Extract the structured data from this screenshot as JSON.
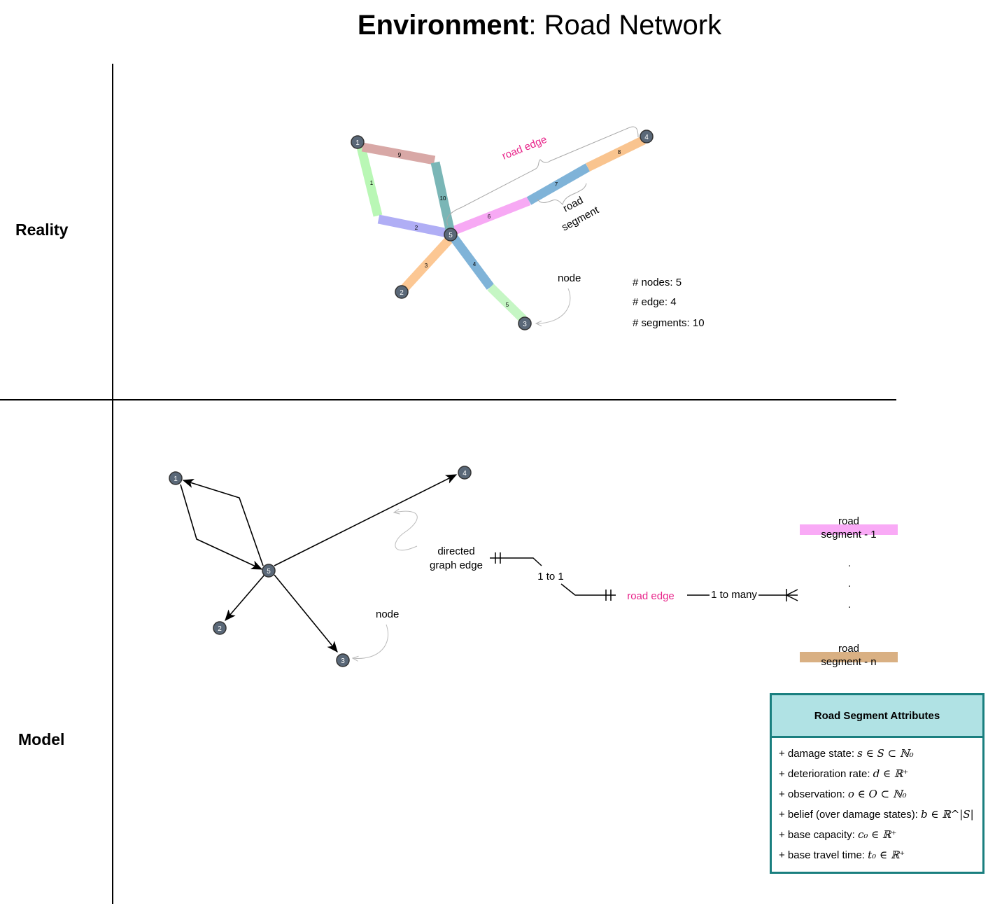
{
  "title": {
    "bold": "Environment",
    "rest": ": Road Network"
  },
  "rows": {
    "reality": "Reality",
    "model": "Model"
  },
  "colors": {
    "node_fill": "#5a6878",
    "road_edge_label": "#e8258a",
    "segment_1": "#f9aaf6",
    "segment_n": "#d9b083",
    "attr_border": "#1a7f7f",
    "attr_header": "#b0e2e4"
  },
  "reality": {
    "nodes": [
      "1",
      "2",
      "3",
      "4",
      "5"
    ],
    "segments": [
      {
        "label": "1",
        "color": "#b9f7b5"
      },
      {
        "label": "2",
        "color": "#b0aef5"
      },
      {
        "label": "3",
        "color": "#fcc793"
      },
      {
        "label": "4",
        "color": "#7fb3d8"
      },
      {
        "label": "5",
        "color": "#c5f6c4"
      },
      {
        "label": "6",
        "color": "#f7a9f4"
      },
      {
        "label": "7",
        "color": "#7fb3d8"
      },
      {
        "label": "8",
        "color": "#f9c48f"
      },
      {
        "label": "9",
        "color": "#d8a8a6"
      },
      {
        "label": "10",
        "color": "#7ab6b6"
      }
    ],
    "annotations": {
      "road_edge": "road edge",
      "road_segment_line1": "road",
      "road_segment_line2": "segment",
      "node": "node"
    },
    "stats": [
      "# nodes: 5",
      "# edge: 4",
      "# segments: 10"
    ]
  },
  "model": {
    "nodes": [
      "1",
      "2",
      "3",
      "4",
      "5"
    ],
    "annotations": {
      "directed_line1": "directed",
      "directed_line2": "graph edge",
      "node": "node",
      "one_to_one": "1 to 1",
      "road_edge": "road edge",
      "one_to_many": "1 to many"
    },
    "segment_first": {
      "line1": "road",
      "line2": "segment - 1"
    },
    "segment_last": {
      "line1": "road",
      "line2": "segment - n"
    },
    "ellipsis": [
      ".",
      ".",
      "."
    ]
  },
  "attributes": {
    "title": "Road Segment Attributes",
    "items": [
      {
        "label": "+ damage state: ",
        "math": "s ∈ S ⊂ ℕ₀"
      },
      {
        "label": "+ deterioration rate: ",
        "math": "d ∈ ℝ⁺"
      },
      {
        "label": "+ observation: ",
        "math": "o ∈ O ⊂ ℕ₀"
      },
      {
        "label": "+ belief (over damage states): ",
        "math": "b ∈ ℝ^|S|"
      },
      {
        "label": "+ base capacity: ",
        "math": "c₀ ∈ ℝ⁺"
      },
      {
        "label": "+ base travel time: ",
        "math": "t₀ ∈ ℝ⁺"
      }
    ]
  }
}
